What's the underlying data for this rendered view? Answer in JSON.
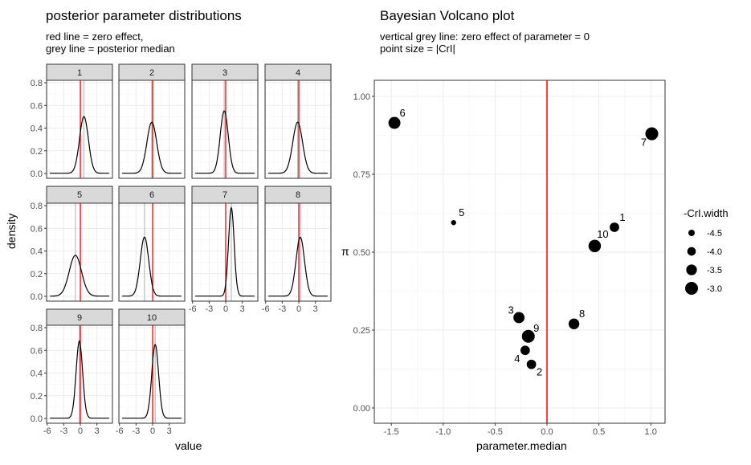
{
  "chart_data": [
    {
      "type": "line",
      "title": "posterior parameter distributions",
      "subtitle_lines": [
        "red line = zero effect,",
        "grey line = posterior median"
      ],
      "xlabel": "value",
      "ylabel": "density",
      "xlim": [
        -6.1,
        5.8
      ],
      "ylim": [
        0,
        0.8
      ],
      "xticks": [
        "-6",
        "-3",
        "0",
        "3"
      ],
      "yticks": [
        "0.0",
        "0.2",
        "0.4",
        "0.6",
        "0.8"
      ],
      "grid": true,
      "zero_line_color": "#ff0000",
      "median_line_color": "#bbbbbb",
      "facets": [
        {
          "label": "1",
          "median": 0.65,
          "peak": 0.5
        },
        {
          "label": "2",
          "median": -0.15,
          "peak": 0.45
        },
        {
          "label": "3",
          "median": -0.27,
          "peak": 0.55
        },
        {
          "label": "4",
          "median": -0.21,
          "peak": 0.45
        },
        {
          "label": "5",
          "median": -0.9,
          "peak": 0.36
        },
        {
          "label": "6",
          "median": -1.47,
          "peak": 0.52
        },
        {
          "label": "7",
          "median": 1.01,
          "peak": 0.78
        },
        {
          "label": "8",
          "median": 0.26,
          "peak": 0.52
        },
        {
          "label": "9",
          "median": -0.18,
          "peak": 0.68
        },
        {
          "label": "10",
          "median": 0.46,
          "peak": 0.65
        }
      ]
    },
    {
      "type": "scatter",
      "title": "Bayesian Volcano plot",
      "subtitle_lines": [
        "vertical grey line: zero effect of parameter = 0",
        "point size = |CrI|"
      ],
      "xlabel": "parameter.median",
      "ylabel": "π",
      "xlim": [
        -1.67,
        1.1
      ],
      "ylim": [
        -0.05,
        1.05
      ],
      "xticks": [
        "-1.5",
        "-1.0",
        "-0.5",
        "0.0",
        "0.5",
        "1.0"
      ],
      "yticks": [
        "0.00",
        "0.25",
        "0.50",
        "0.75",
        "1.00"
      ],
      "grid": true,
      "zero_line_color": "#ff0000",
      "legend": {
        "title": "-CrI.width",
        "position": "right",
        "entries": [
          "-4.5",
          "-4.0",
          "-3.5",
          "-3.0"
        ]
      },
      "points": [
        {
          "label": "1",
          "x": 0.65,
          "y": 0.58,
          "size": -3.8
        },
        {
          "label": "2",
          "x": -0.15,
          "y": 0.14,
          "size": -3.8
        },
        {
          "label": "3",
          "x": -0.27,
          "y": 0.29,
          "size": -3.4
        },
        {
          "label": "4",
          "x": -0.21,
          "y": 0.185,
          "size": -3.8
        },
        {
          "label": "5",
          "x": -0.9,
          "y": 0.595,
          "size": -4.8
        },
        {
          "label": "6",
          "x": -1.47,
          "y": 0.915,
          "size": -3.2
        },
        {
          "label": "7",
          "x": 1.01,
          "y": 0.88,
          "size": -3.0
        },
        {
          "label": "8",
          "x": 0.26,
          "y": 0.27,
          "size": -3.5
        },
        {
          "label": "9",
          "x": -0.18,
          "y": 0.23,
          "size": -3.0
        },
        {
          "label": "10",
          "x": 0.46,
          "y": 0.52,
          "size": -3.1
        }
      ]
    }
  ]
}
